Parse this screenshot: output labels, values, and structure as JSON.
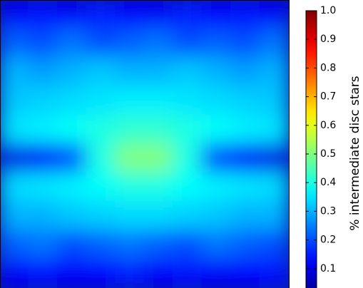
{
  "chart_data": {
    "type": "heatmap",
    "colormap": "jet",
    "z": [
      [
        0.12,
        0.14,
        0.12,
        0.15,
        0.13,
        0.12,
        0.15,
        0.13,
        0.14,
        0.12
      ],
      [
        0.22,
        0.2,
        0.24,
        0.2,
        0.22,
        0.24,
        0.2,
        0.22,
        0.2,
        0.24
      ],
      [
        0.3,
        0.28,
        0.3,
        0.32,
        0.3,
        0.3,
        0.32,
        0.3,
        0.28,
        0.3
      ],
      [
        0.32,
        0.33,
        0.34,
        0.35,
        0.36,
        0.36,
        0.35,
        0.34,
        0.33,
        0.32
      ],
      [
        0.35,
        0.36,
        0.38,
        0.4,
        0.42,
        0.42,
        0.4,
        0.38,
        0.36,
        0.35
      ],
      [
        0.1,
        0.12,
        0.2,
        0.4,
        0.5,
        0.5,
        0.4,
        0.2,
        0.12,
        0.1
      ],
      [
        0.34,
        0.35,
        0.36,
        0.38,
        0.4,
        0.4,
        0.38,
        0.36,
        0.35,
        0.34
      ],
      [
        0.3,
        0.3,
        0.32,
        0.33,
        0.34,
        0.34,
        0.33,
        0.32,
        0.3,
        0.3
      ],
      [
        0.22,
        0.24,
        0.2,
        0.22,
        0.24,
        0.22,
        0.2,
        0.24,
        0.22,
        0.2
      ],
      [
        0.12,
        0.14,
        0.12,
        0.13,
        0.15,
        0.12,
        0.14,
        0.12,
        0.13,
        0.14
      ]
    ],
    "clim": [
      0,
      1
    ],
    "colorbar": {
      "label": "% intermediate disc stars",
      "ticks": [
        0.1,
        0.2,
        0.3,
        0.4,
        0.5,
        0.6,
        0.7,
        0.8,
        0.9,
        {
          "value": 1,
          "label": "1.0"
        }
      ]
    }
  }
}
